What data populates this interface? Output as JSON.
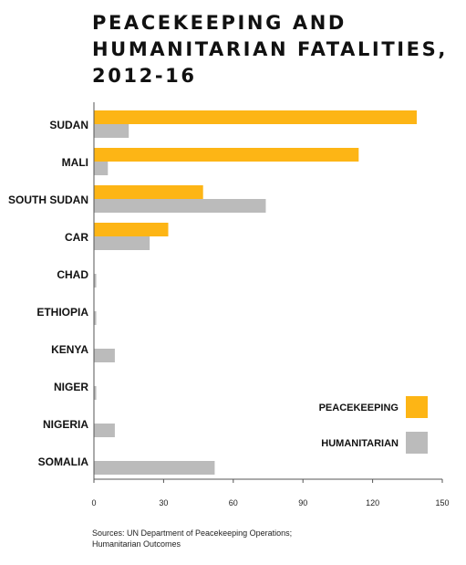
{
  "title_lines": [
    "PEACEKEEPING AND",
    "HUMANITARIAN FATALITIES,",
    "2012-16"
  ],
  "source_lines": [
    "Sources: UN Department of Peacekeeping Operations;",
    "Humanitarian Outcomes"
  ],
  "colors": {
    "peacekeeping": "#FDB515",
    "humanitarian": "#BBBBBB",
    "text": "#111111",
    "axis": "#555555"
  },
  "chart_data": {
    "type": "bar",
    "orientation": "horizontal",
    "categories": [
      "SUDAN",
      "MALI",
      "SOUTH SUDAN",
      "CAR",
      "CHAD",
      "ETHIOPIA",
      "KENYA",
      "NIGER",
      "NIGERIA",
      "SOMALIA"
    ],
    "series": [
      {
        "name": "PEACEKEEPING",
        "values": [
          139,
          114,
          47,
          32,
          0,
          0,
          0,
          0,
          0,
          0
        ]
      },
      {
        "name": "HUMANITARIAN",
        "values": [
          15,
          6,
          74,
          24,
          1,
          1,
          9,
          1,
          9,
          52
        ]
      }
    ],
    "xlim": [
      0,
      150
    ],
    "xticks": [
      "0",
      "30",
      "60",
      "90",
      "120",
      "150"
    ],
    "grid": false,
    "legend_position": "bottom-right"
  }
}
